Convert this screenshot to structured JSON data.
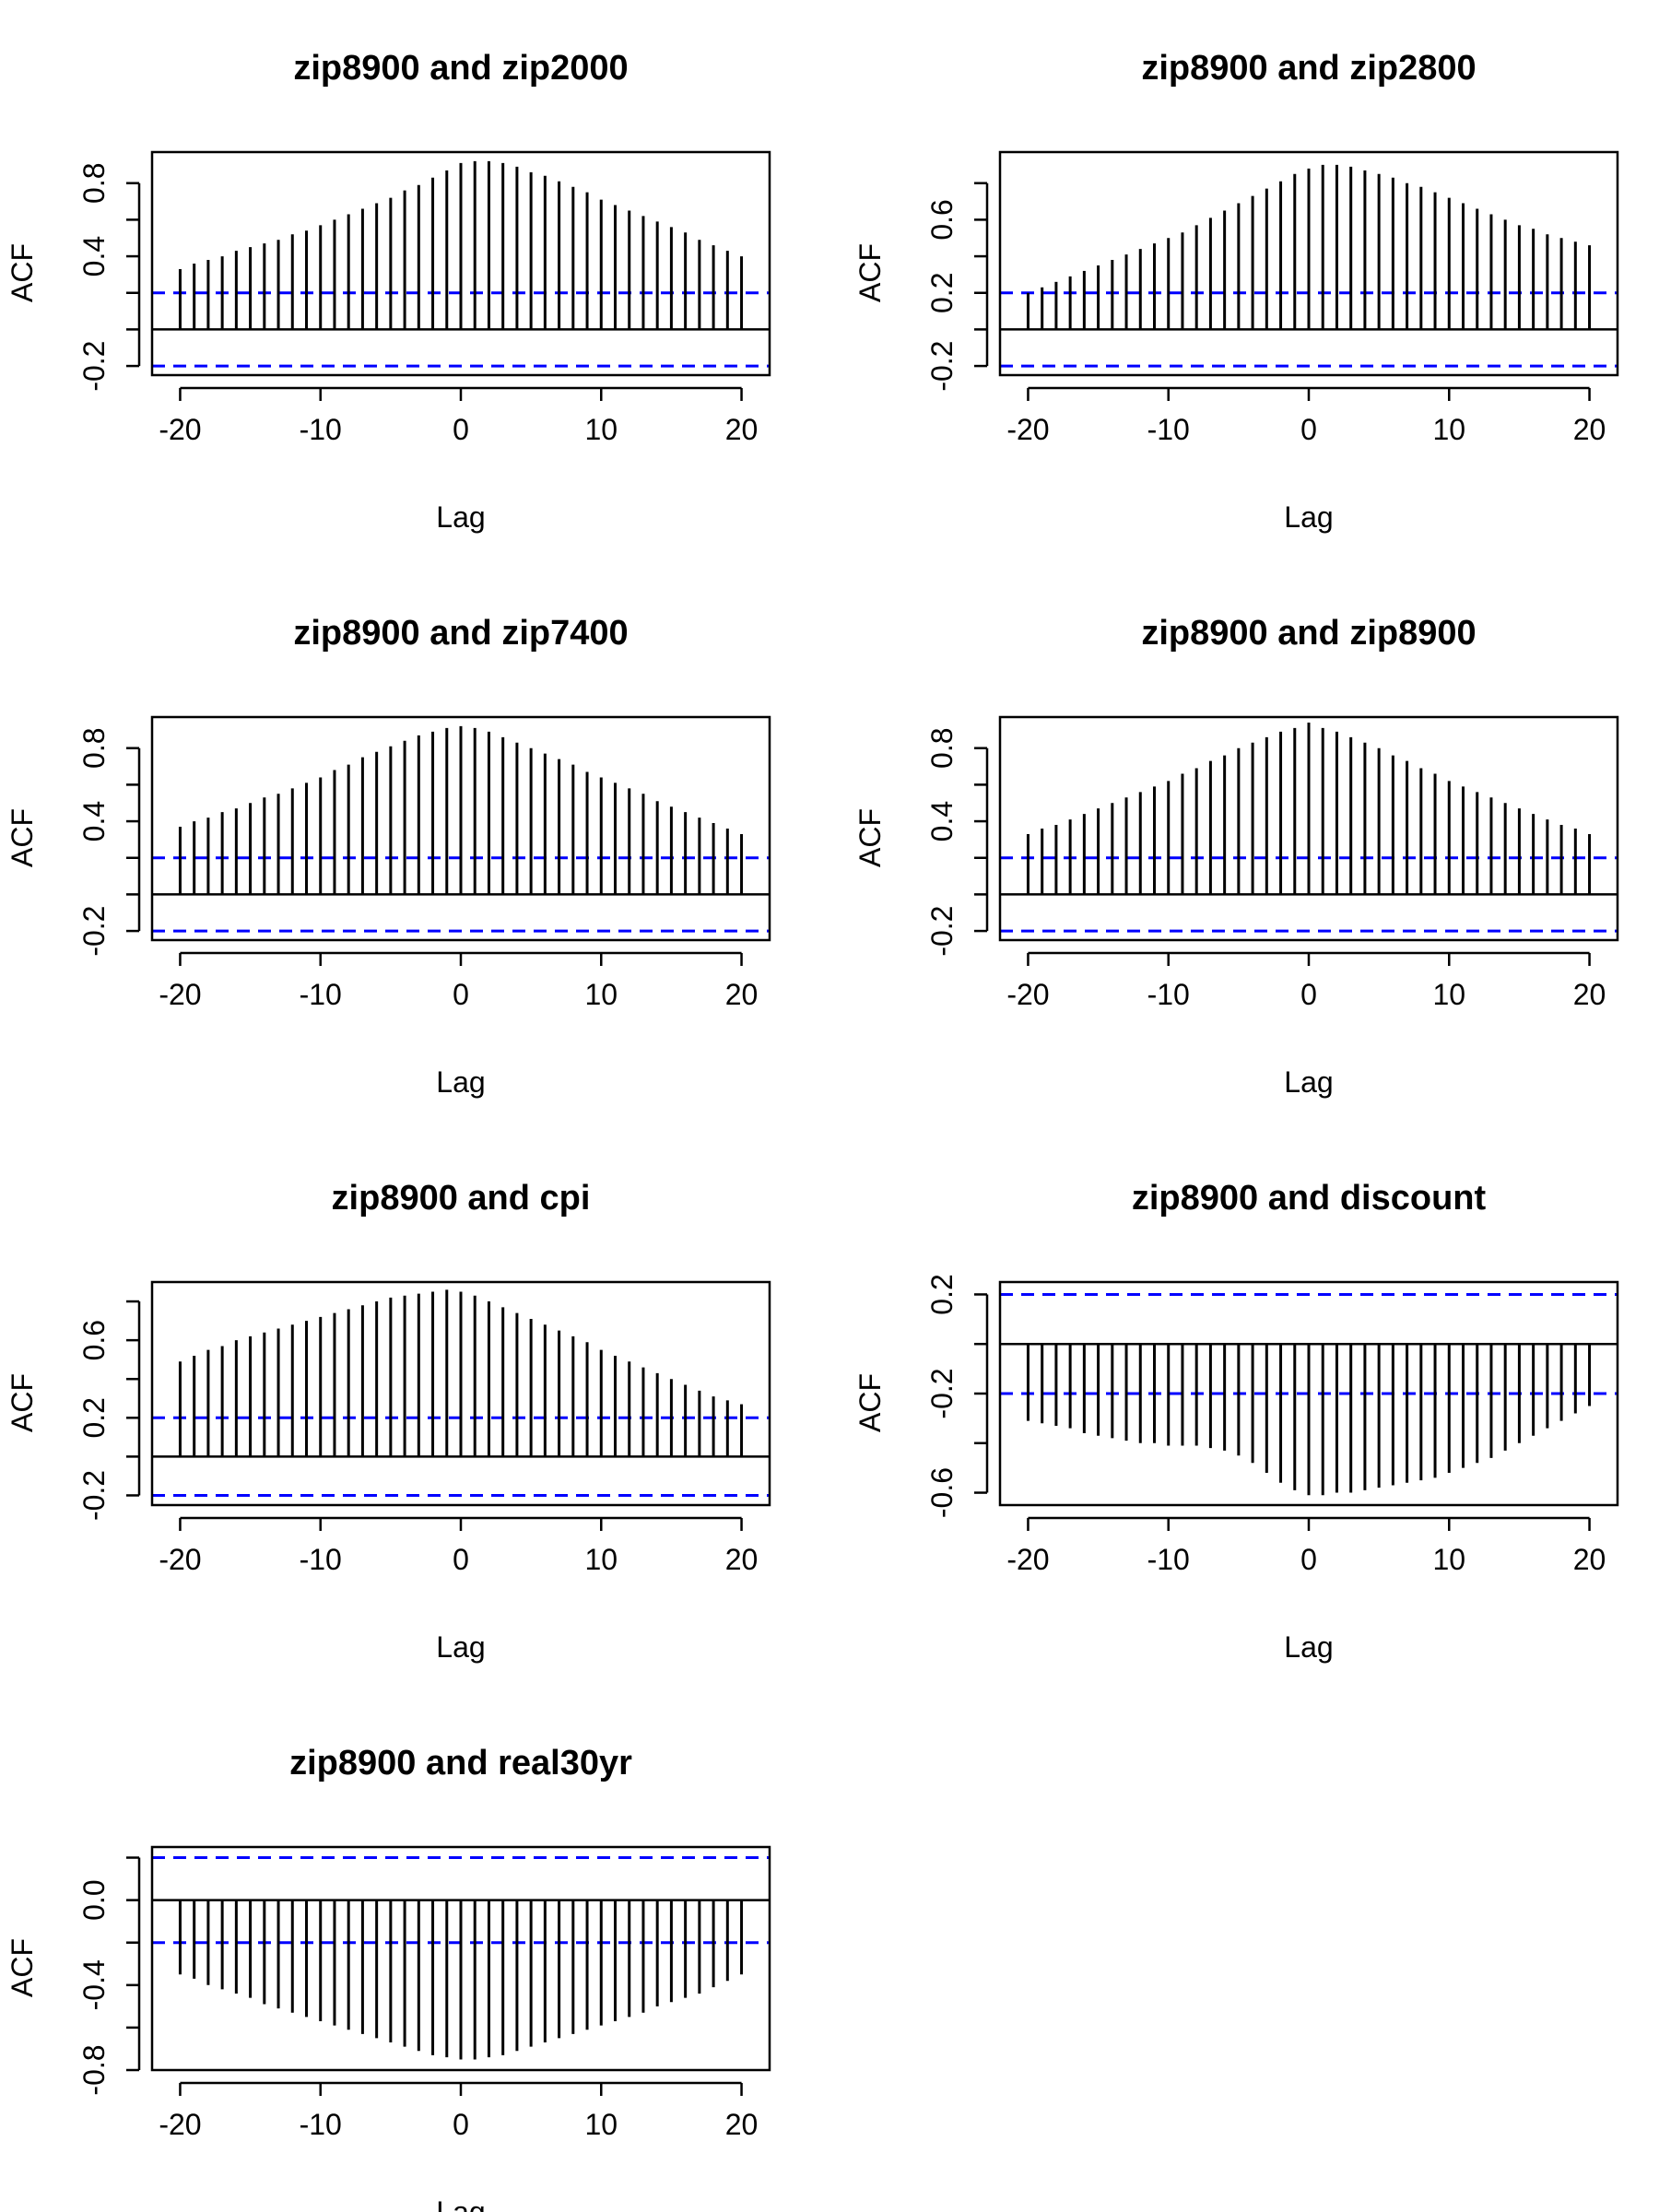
{
  "chart_data": [
    {
      "type": "bar",
      "title": "zip8900 and zip2000",
      "xlabel": "Lag",
      "ylabel": "ACF",
      "xlim": [
        -22,
        22
      ],
      "ylim": [
        -0.25,
        0.97
      ],
      "xticks": [
        -20,
        -10,
        0,
        10,
        20
      ],
      "yticks": [
        -0.2,
        0.0,
        0.2,
        0.4,
        0.6,
        0.8
      ],
      "ytick_labels": [
        "-0.2",
        "",
        "",
        "0.4",
        "",
        "0.8"
      ],
      "ci": 0.2,
      "lags": [
        -20,
        -19,
        -18,
        -17,
        -16,
        -15,
        -14,
        -13,
        -12,
        -11,
        -10,
        -9,
        -8,
        -7,
        -6,
        -5,
        -4,
        -3,
        -2,
        -1,
        0,
        1,
        2,
        3,
        4,
        5,
        6,
        7,
        8,
        9,
        10,
        11,
        12,
        13,
        14,
        15,
        16,
        17,
        18,
        19,
        20
      ],
      "values": [
        0.33,
        0.36,
        0.38,
        0.4,
        0.43,
        0.45,
        0.47,
        0.49,
        0.52,
        0.54,
        0.57,
        0.6,
        0.63,
        0.66,
        0.69,
        0.72,
        0.76,
        0.79,
        0.83,
        0.87,
        0.91,
        0.92,
        0.92,
        0.91,
        0.89,
        0.86,
        0.84,
        0.81,
        0.78,
        0.75,
        0.71,
        0.68,
        0.65,
        0.62,
        0.59,
        0.56,
        0.53,
        0.49,
        0.46,
        0.43,
        0.4
      ],
      "grid": false
    },
    {
      "type": "bar",
      "title": "zip8900 and zip2800",
      "xlabel": "Lag",
      "ylabel": "ACF",
      "xlim": [
        -22,
        22
      ],
      "ylim": [
        -0.25,
        0.97
      ],
      "xticks": [
        -20,
        -10,
        0,
        10,
        20
      ],
      "yticks": [
        -0.2,
        0.0,
        0.2,
        0.4,
        0.6,
        0.8
      ],
      "ytick_labels": [
        "-0.2",
        "",
        "0.2",
        "",
        "0.6",
        ""
      ],
      "ci": 0.2,
      "lags": [
        -20,
        -19,
        -18,
        -17,
        -16,
        -15,
        -14,
        -13,
        -12,
        -11,
        -10,
        -9,
        -8,
        -7,
        -6,
        -5,
        -4,
        -3,
        -2,
        -1,
        0,
        1,
        2,
        3,
        4,
        5,
        6,
        7,
        8,
        9,
        10,
        11,
        12,
        13,
        14,
        15,
        16,
        17,
        18,
        19,
        20
      ],
      "values": [
        0.2,
        0.23,
        0.26,
        0.29,
        0.32,
        0.35,
        0.38,
        0.41,
        0.44,
        0.47,
        0.5,
        0.53,
        0.57,
        0.61,
        0.65,
        0.69,
        0.73,
        0.77,
        0.81,
        0.85,
        0.88,
        0.9,
        0.9,
        0.89,
        0.87,
        0.85,
        0.83,
        0.8,
        0.78,
        0.75,
        0.72,
        0.69,
        0.66,
        0.63,
        0.6,
        0.57,
        0.55,
        0.52,
        0.5,
        0.48,
        0.46
      ],
      "grid": false
    },
    {
      "type": "bar",
      "title": "zip8900 and zip7400",
      "xlabel": "Lag",
      "ylabel": "ACF",
      "xlim": [
        -22,
        22
      ],
      "ylim": [
        -0.25,
        0.97
      ],
      "xticks": [
        -20,
        -10,
        0,
        10,
        20
      ],
      "yticks": [
        -0.2,
        0.0,
        0.2,
        0.4,
        0.6,
        0.8
      ],
      "ytick_labels": [
        "-0.2",
        "",
        "",
        "0.4",
        "",
        "0.8"
      ],
      "ci": 0.2,
      "lags": [
        -20,
        -19,
        -18,
        -17,
        -16,
        -15,
        -14,
        -13,
        -12,
        -11,
        -10,
        -9,
        -8,
        -7,
        -6,
        -5,
        -4,
        -3,
        -2,
        -1,
        0,
        1,
        2,
        3,
        4,
        5,
        6,
        7,
        8,
        9,
        10,
        11,
        12,
        13,
        14,
        15,
        16,
        17,
        18,
        19,
        20
      ],
      "values": [
        0.37,
        0.4,
        0.42,
        0.45,
        0.47,
        0.5,
        0.53,
        0.55,
        0.58,
        0.61,
        0.64,
        0.68,
        0.71,
        0.75,
        0.78,
        0.81,
        0.84,
        0.87,
        0.89,
        0.91,
        0.92,
        0.91,
        0.89,
        0.86,
        0.83,
        0.8,
        0.77,
        0.74,
        0.71,
        0.67,
        0.64,
        0.61,
        0.58,
        0.55,
        0.51,
        0.48,
        0.45,
        0.42,
        0.39,
        0.36,
        0.33
      ],
      "grid": false
    },
    {
      "type": "bar",
      "title": "zip8900 and zip8900",
      "xlabel": "Lag",
      "ylabel": "ACF",
      "xlim": [
        -22,
        22
      ],
      "ylim": [
        -0.25,
        0.97
      ],
      "xticks": [
        -20,
        -10,
        0,
        10,
        20
      ],
      "yticks": [
        -0.2,
        0.0,
        0.2,
        0.4,
        0.6,
        0.8
      ],
      "ytick_labels": [
        "-0.2",
        "",
        "",
        "0.4",
        "",
        "0.8"
      ],
      "ci": 0.2,
      "lags": [
        -20,
        -19,
        -18,
        -17,
        -16,
        -15,
        -14,
        -13,
        -12,
        -11,
        -10,
        -9,
        -8,
        -7,
        -6,
        -5,
        -4,
        -3,
        -2,
        -1,
        0,
        1,
        2,
        3,
        4,
        5,
        6,
        7,
        8,
        9,
        10,
        11,
        12,
        13,
        14,
        15,
        16,
        17,
        18,
        19,
        20
      ],
      "values": [
        0.33,
        0.36,
        0.38,
        0.41,
        0.44,
        0.47,
        0.5,
        0.53,
        0.56,
        0.59,
        0.62,
        0.66,
        0.69,
        0.73,
        0.76,
        0.8,
        0.83,
        0.86,
        0.89,
        0.91,
        0.94,
        0.91,
        0.89,
        0.86,
        0.83,
        0.8,
        0.76,
        0.73,
        0.69,
        0.66,
        0.62,
        0.59,
        0.56,
        0.53,
        0.5,
        0.47,
        0.44,
        0.41,
        0.38,
        0.36,
        0.33
      ],
      "grid": false
    },
    {
      "type": "bar",
      "title": "zip8900 and cpi",
      "xlabel": "Lag",
      "ylabel": "ACF",
      "xlim": [
        -22,
        22
      ],
      "ylim": [
        -0.25,
        0.9
      ],
      "xticks": [
        -20,
        -10,
        0,
        10,
        20
      ],
      "yticks": [
        -0.2,
        0.0,
        0.2,
        0.4,
        0.6,
        0.8
      ],
      "ytick_labels": [
        "-0.2",
        "",
        "0.2",
        "",
        "0.6",
        ""
      ],
      "ci": 0.2,
      "lags": [
        -20,
        -19,
        -18,
        -17,
        -16,
        -15,
        -14,
        -13,
        -12,
        -11,
        -10,
        -9,
        -8,
        -7,
        -6,
        -5,
        -4,
        -3,
        -2,
        -1,
        0,
        1,
        2,
        3,
        4,
        5,
        6,
        7,
        8,
        9,
        10,
        11,
        12,
        13,
        14,
        15,
        16,
        17,
        18,
        19,
        20
      ],
      "values": [
        0.49,
        0.52,
        0.55,
        0.57,
        0.6,
        0.62,
        0.64,
        0.66,
        0.68,
        0.7,
        0.72,
        0.74,
        0.76,
        0.78,
        0.8,
        0.82,
        0.83,
        0.84,
        0.85,
        0.86,
        0.85,
        0.83,
        0.8,
        0.77,
        0.74,
        0.71,
        0.68,
        0.65,
        0.62,
        0.59,
        0.55,
        0.52,
        0.49,
        0.46,
        0.43,
        0.4,
        0.37,
        0.34,
        0.31,
        0.29,
        0.27
      ],
      "grid": false
    },
    {
      "type": "bar",
      "title": "zip8900 and discount",
      "xlabel": "Lag",
      "ylabel": "ACF",
      "xlim": [
        -22,
        22
      ],
      "ylim": [
        -0.65,
        0.25
      ],
      "xticks": [
        -20,
        -10,
        0,
        10,
        20
      ],
      "yticks": [
        -0.6,
        -0.4,
        -0.2,
        0.0,
        0.2
      ],
      "ytick_labels": [
        "-0.6",
        "",
        "-0.2",
        "",
        "0.2"
      ],
      "ci": 0.2,
      "lags": [
        -20,
        -19,
        -18,
        -17,
        -16,
        -15,
        -14,
        -13,
        -12,
        -11,
        -10,
        -9,
        -8,
        -7,
        -6,
        -5,
        -4,
        -3,
        -2,
        -1,
        0,
        1,
        2,
        3,
        4,
        5,
        6,
        7,
        8,
        9,
        10,
        11,
        12,
        13,
        14,
        15,
        16,
        17,
        18,
        19,
        20
      ],
      "values": [
        -0.31,
        -0.32,
        -0.33,
        -0.34,
        -0.36,
        -0.37,
        -0.38,
        -0.39,
        -0.4,
        -0.4,
        -0.41,
        -0.41,
        -0.41,
        -0.42,
        -0.43,
        -0.45,
        -0.48,
        -0.52,
        -0.56,
        -0.59,
        -0.61,
        -0.61,
        -0.6,
        -0.6,
        -0.59,
        -0.58,
        -0.57,
        -0.56,
        -0.55,
        -0.54,
        -0.52,
        -0.5,
        -0.48,
        -0.46,
        -0.43,
        -0.4,
        -0.37,
        -0.34,
        -0.31,
        -0.28,
        -0.25
      ],
      "grid": false
    },
    {
      "type": "bar",
      "title": "zip8900 and real30yr",
      "xlabel": "Lag",
      "ylabel": "ACF",
      "xlim": [
        -22,
        22
      ],
      "ylim": [
        -0.8,
        0.25
      ],
      "xticks": [
        -20,
        -10,
        0,
        10,
        20
      ],
      "yticks": [
        -0.8,
        -0.6,
        -0.4,
        -0.2,
        0.0,
        0.2
      ],
      "ytick_labels": [
        "-0.8",
        "",
        "-0.4",
        "",
        "0.0",
        ""
      ],
      "ci": 0.2,
      "lags": [
        -20,
        -19,
        -18,
        -17,
        -16,
        -15,
        -14,
        -13,
        -12,
        -11,
        -10,
        -9,
        -8,
        -7,
        -6,
        -5,
        -4,
        -3,
        -2,
        -1,
        0,
        1,
        2,
        3,
        4,
        5,
        6,
        7,
        8,
        9,
        10,
        11,
        12,
        13,
        14,
        15,
        16,
        17,
        18,
        19,
        20
      ],
      "values": [
        -0.35,
        -0.37,
        -0.4,
        -0.42,
        -0.44,
        -0.46,
        -0.49,
        -0.51,
        -0.53,
        -0.55,
        -0.57,
        -0.59,
        -0.61,
        -0.63,
        -0.65,
        -0.67,
        -0.69,
        -0.71,
        -0.73,
        -0.74,
        -0.75,
        -0.75,
        -0.74,
        -0.73,
        -0.71,
        -0.69,
        -0.67,
        -0.65,
        -0.63,
        -0.61,
        -0.59,
        -0.57,
        -0.55,
        -0.53,
        -0.5,
        -0.48,
        -0.46,
        -0.44,
        -0.41,
        -0.38,
        -0.35
      ],
      "grid": false
    }
  ],
  "colors": {
    "bars": "#000000",
    "ci_line": "#0000ff",
    "axis": "#000000"
  }
}
